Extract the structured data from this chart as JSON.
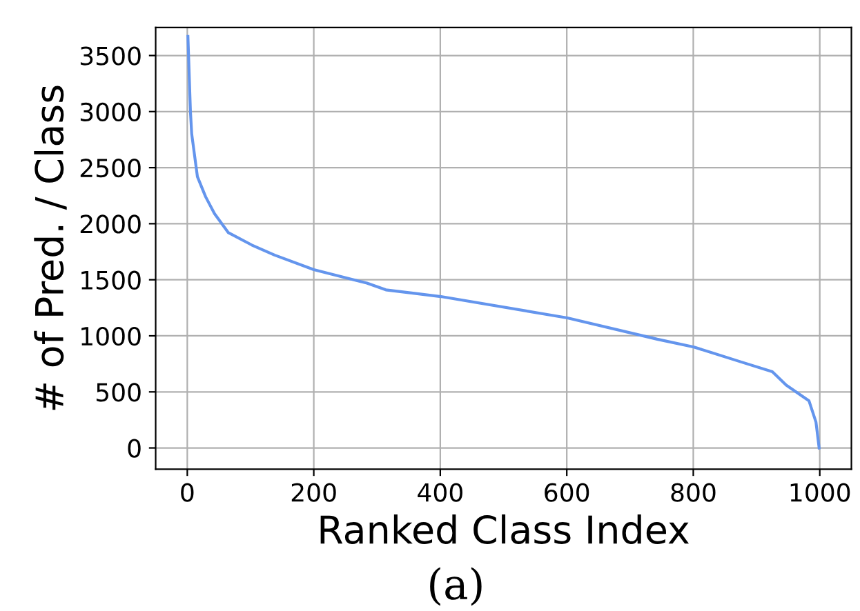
{
  "chart_data": {
    "type": "line",
    "xlabel": "Ranked Class Index",
    "ylabel": "# of Pred. / Class",
    "annotations": [
      "(a)"
    ],
    "x": [
      1,
      5,
      7,
      16,
      29,
      43,
      65,
      102,
      138,
      200,
      284,
      314,
      357,
      401,
      601,
      743,
      801,
      874,
      925,
      947,
      983,
      994,
      999
    ],
    "series": [
      {
        "color": "#6495ed",
        "values": [
          3670,
          3000,
          2800,
          2420,
          2240,
          2090,
          1920,
          1810,
          1720,
          1590,
          1470,
          1410,
          1380,
          1350,
          1160,
          970,
          900,
          770,
          680,
          560,
          420,
          230,
          0
        ]
      }
    ],
    "xlim": [
      -50,
      1050
    ],
    "ylim": [
      -190,
      3750
    ],
    "xticks": [
      0,
      200,
      400,
      600,
      800,
      1000
    ],
    "yticks": [
      0,
      500,
      1000,
      1500,
      2000,
      2500,
      3000,
      3500
    ],
    "grid": true
  }
}
